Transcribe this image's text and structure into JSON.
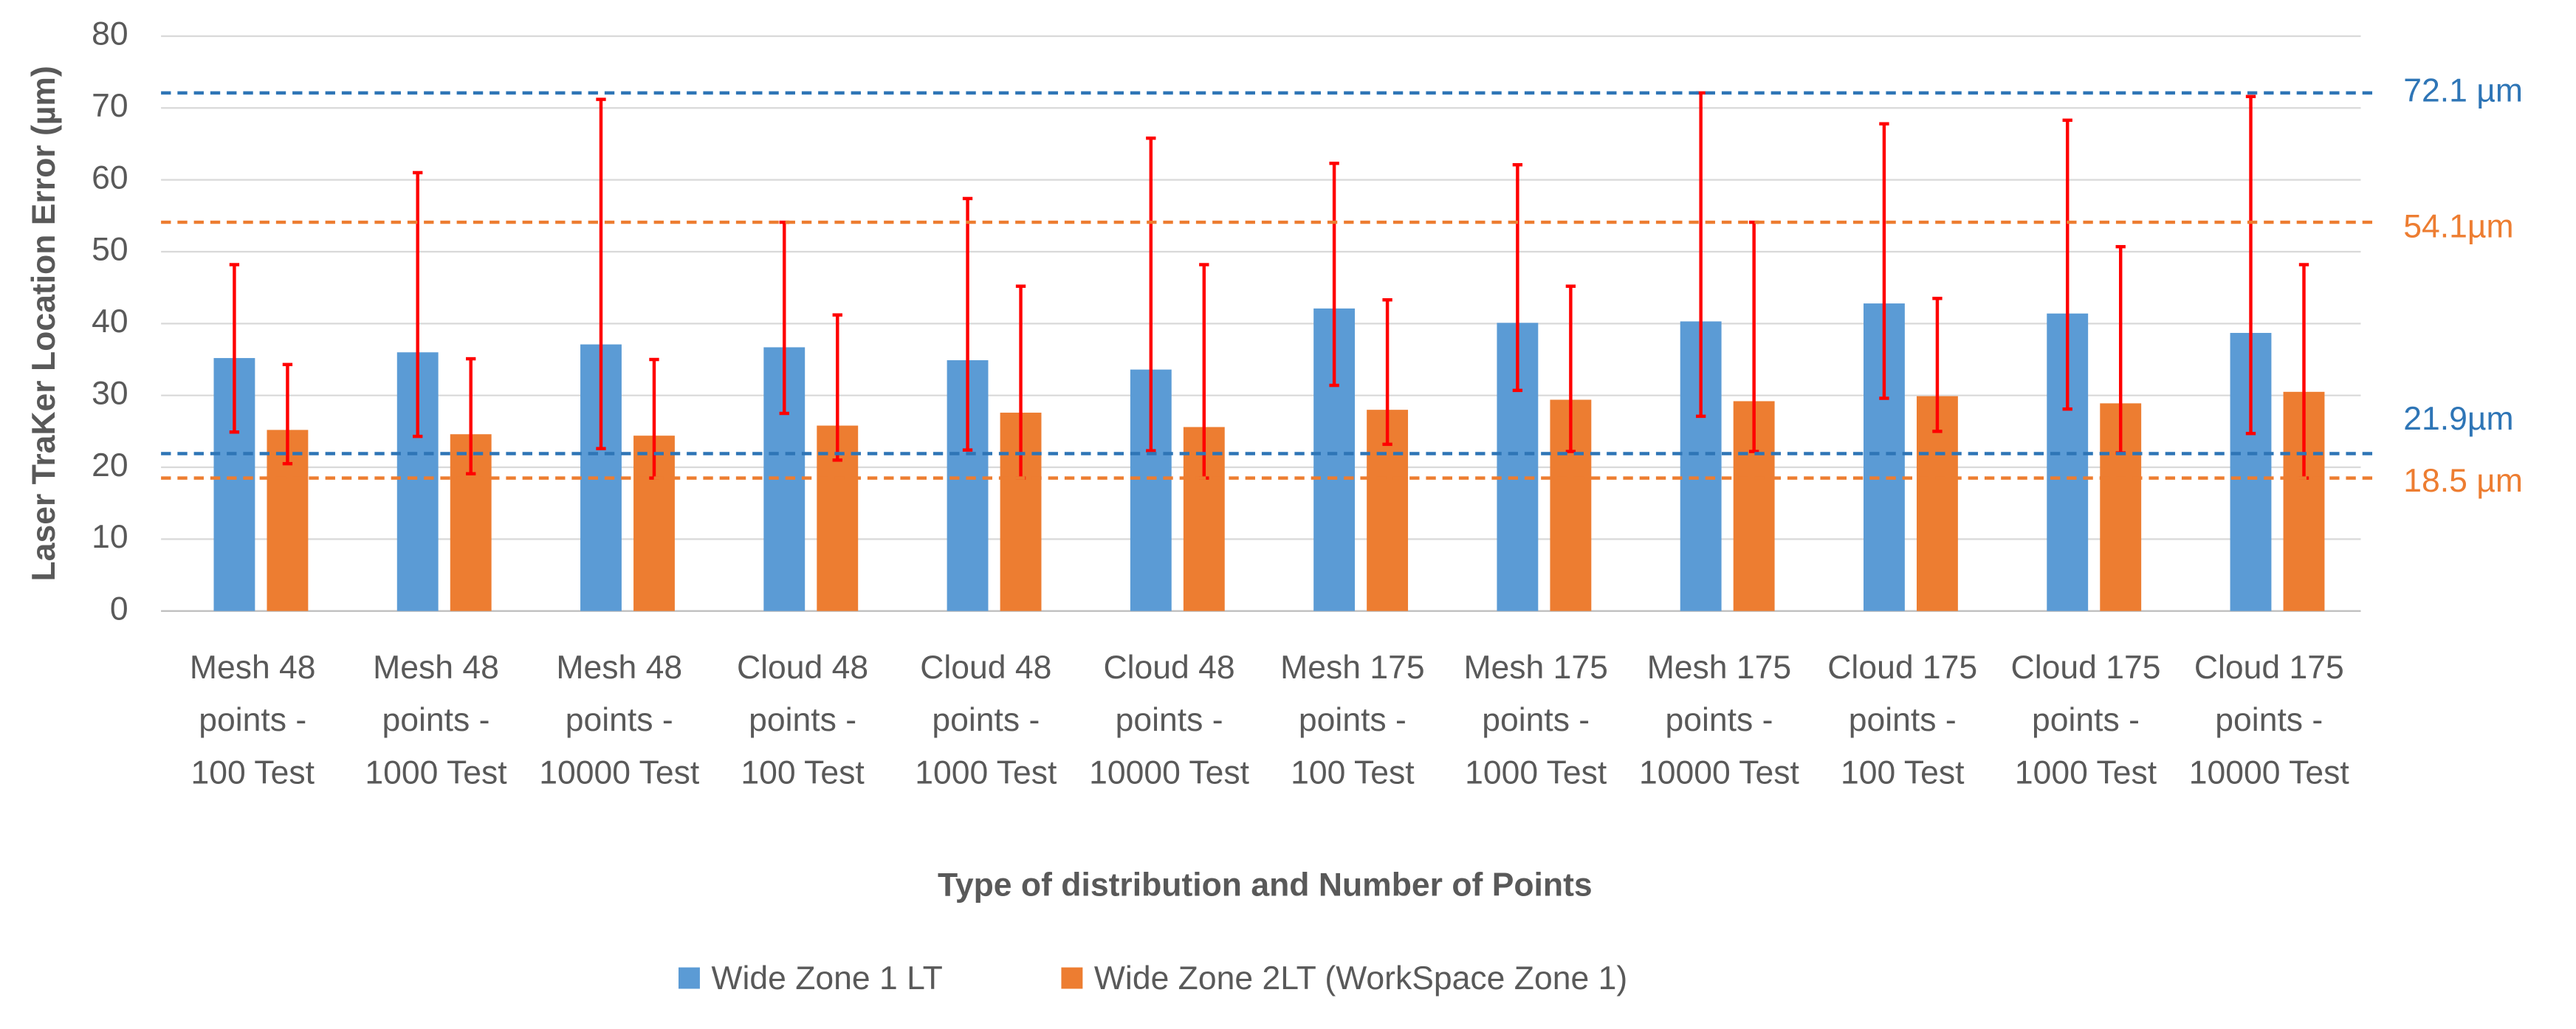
{
  "chart_data": {
    "type": "bar",
    "x_label": "Type of distribution and Number of Points",
    "y_label": "Laser TraKer Location Error  (µm)",
    "categories": [
      "Mesh 48 points - 100 Test",
      "Mesh 48 points - 1000 Test",
      "Mesh 48 points - 10000 Test",
      "Cloud 48 points - 100 Test",
      "Cloud 48 points - 1000 Test",
      "Cloud 48 points - 10000 Test",
      "Mesh 175 points - 100 Test",
      "Mesh 175 points - 1000 Test",
      "Mesh 175 points - 10000 Test",
      "Cloud 175 points - 100 Test",
      "Cloud 175 points - 1000 Test",
      "Cloud 175 points - 10000 Test"
    ],
    "series": [
      {
        "name": "Wide Zone 1 LT",
        "color": "#5b9bd5",
        "values": [
          35.2,
          36,
          37.1,
          36.7,
          34.9,
          33.6,
          42.1,
          40.1,
          40.3,
          42.8,
          41.4,
          38.7
        ],
        "lower": [
          24.9,
          24.3,
          22.6,
          27.5,
          22.4,
          22.3,
          31.4,
          30.7,
          27.1,
          29.6,
          28.1,
          24.7
        ],
        "upper": [
          48.2,
          61,
          71.2,
          54.1,
          57.4,
          65.8,
          62.3,
          62.1,
          72.1,
          67.8,
          68.3,
          71.6
        ]
      },
      {
        "name": "Wide Zone 2LT (WorkSpace Zone 1)",
        "color": "#ed7d31",
        "values": [
          25.2,
          24.6,
          24.4,
          25.8,
          27.6,
          25.6,
          28,
          29.4,
          29.2,
          29.9,
          28.9,
          30.5
        ],
        "lower": [
          20.5,
          19.1,
          18.5,
          21,
          18.5,
          18.5,
          23.2,
          22.2,
          22.2,
          25,
          22,
          18.5
        ],
        "upper": [
          34.3,
          35.1,
          35,
          41.2,
          45.2,
          48.2,
          43.3,
          45.2,
          54.1,
          43.5,
          50.7,
          48.2
        ]
      }
    ],
    "error_color": "#ff0000",
    "reference_lines": [
      {
        "value": 72.1,
        "label": "72.1 µm",
        "color": "#2e75b6"
      },
      {
        "value": 54.1,
        "label": "54.1µm",
        "color": "#ed7d31"
      },
      {
        "value": 21.9,
        "label": "21.9µm",
        "color": "#2e75b6"
      },
      {
        "value": 18.5,
        "label": "18.5 µm",
        "color": "#ed7d31"
      }
    ],
    "ylim": [
      0,
      80
    ],
    "yticks": [
      0,
      10,
      20,
      30,
      40,
      50,
      60,
      70,
      80
    ],
    "grid": true,
    "legend": "bottom"
  }
}
